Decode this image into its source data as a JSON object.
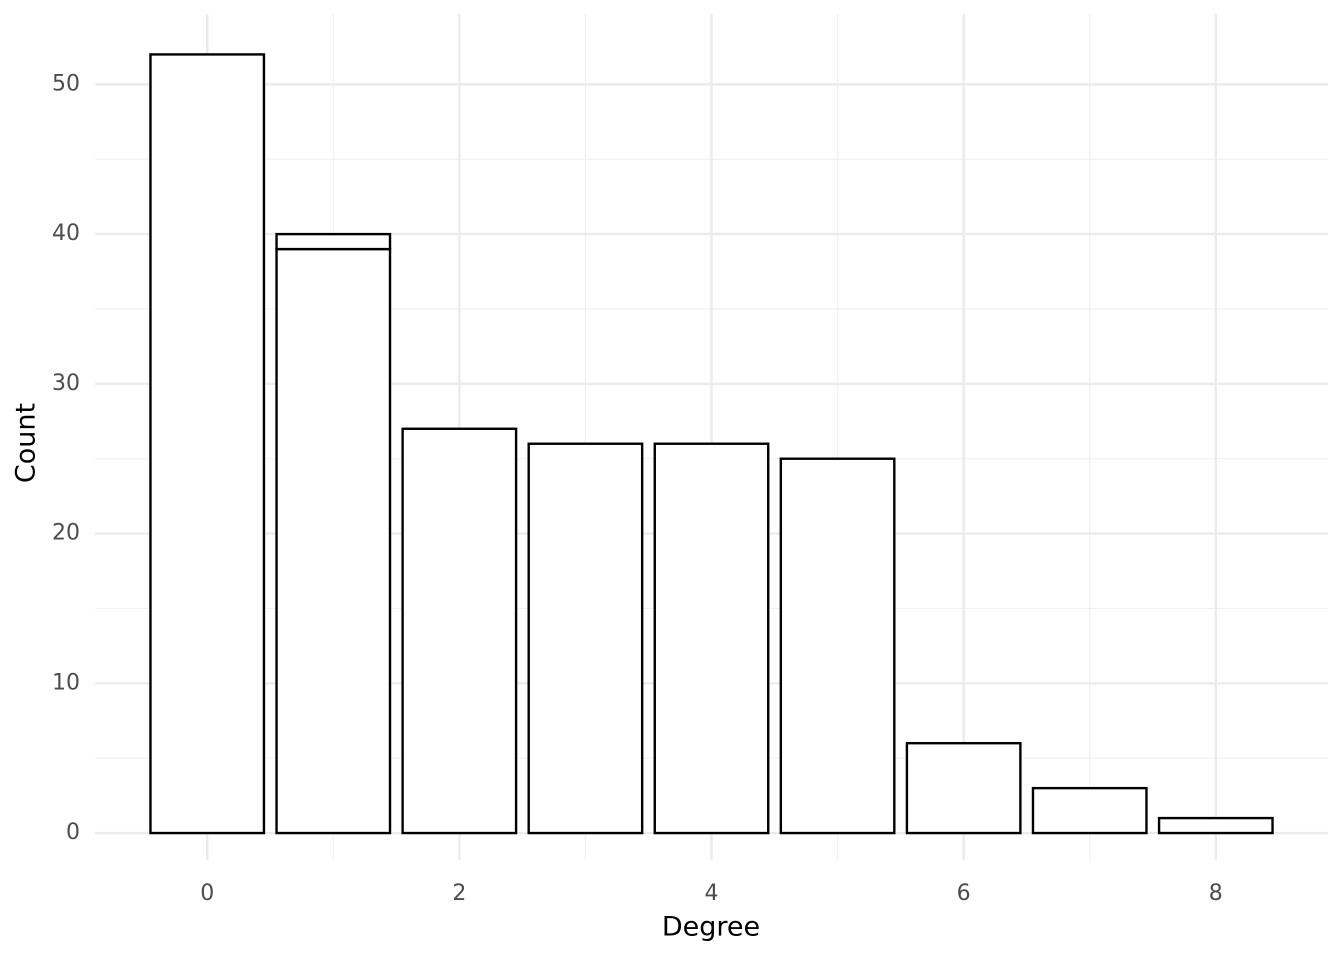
{
  "chart_data": {
    "type": "bar",
    "x": [
      0,
      1,
      2,
      3,
      4,
      5,
      6,
      7,
      8
    ],
    "series": [
      {
        "color": "#ffffff",
        "values": [
          52,
          39,
          27,
          26,
          26,
          25,
          6,
          3,
          1
        ]
      },
      {
        "color": "#ffffff",
        "values": [
          null,
          1,
          null,
          null,
          null,
          null,
          null,
          null,
          null
        ]
      }
    ],
    "edge_color": "#000000",
    "x_label": "Degree",
    "y_label": "Count",
    "xlim": [
      -0.89,
      8.89
    ],
    "xticks": [
      0,
      2,
      4,
      6,
      8
    ],
    "xticks_minor": [
      1,
      3,
      5,
      7
    ],
    "ylim": [
      -1.8,
      54.7
    ],
    "yticks": [
      0,
      10,
      20,
      30,
      40,
      50
    ],
    "yticks_minor": [
      5,
      15,
      25,
      35,
      45
    ],
    "grid": true
  }
}
